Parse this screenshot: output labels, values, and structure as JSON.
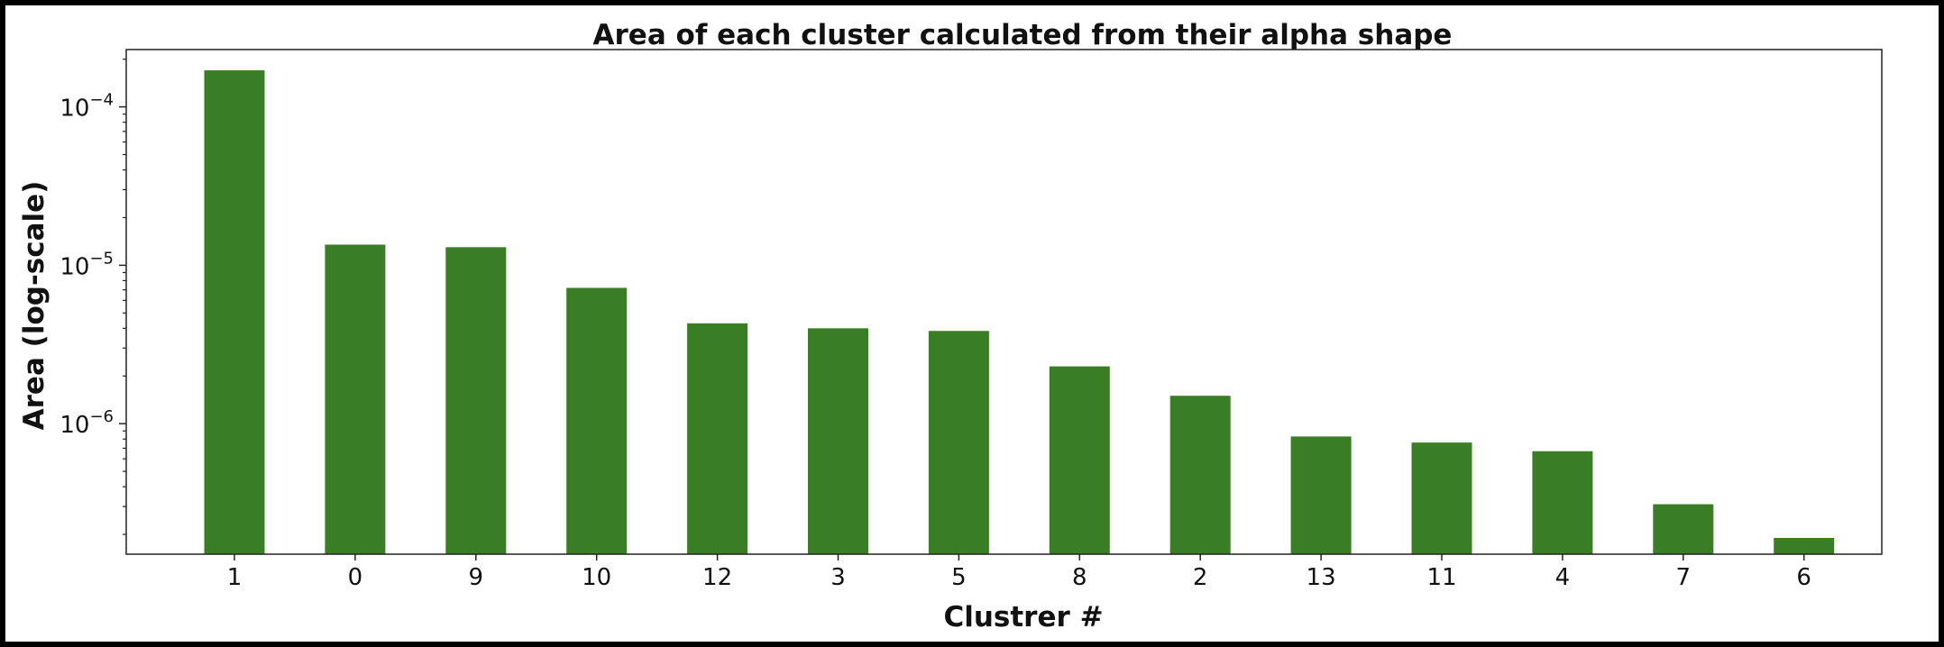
{
  "chart_data": {
    "type": "bar",
    "title": "Area of each cluster calculated from their alpha shape",
    "xlabel": "Clustrer #",
    "ylabel": "Area (log-scale)",
    "yscale": "log",
    "ylim": [
      1.5e-07,
      0.00023
    ],
    "grid": false,
    "categories": [
      "1",
      "0",
      "9",
      "10",
      "12",
      "3",
      "5",
      "8",
      "2",
      "13",
      "11",
      "4",
      "7",
      "6"
    ],
    "values": [
      0.00017,
      1.35e-05,
      1.3e-05,
      7.2e-06,
      4.3e-06,
      4e-06,
      3.85e-06,
      2.3e-06,
      1.5e-06,
      8.3e-07,
      7.6e-07,
      6.7e-07,
      3.1e-07,
      1.9e-07
    ],
    "bar_color": "#397d24",
    "yticks": [
      {
        "value": 0.0001,
        "base": "10",
        "exp": "−4"
      },
      {
        "value": 1e-05,
        "base": "10",
        "exp": "−5"
      },
      {
        "value": 1e-06,
        "base": "10",
        "exp": "−6"
      }
    ]
  }
}
